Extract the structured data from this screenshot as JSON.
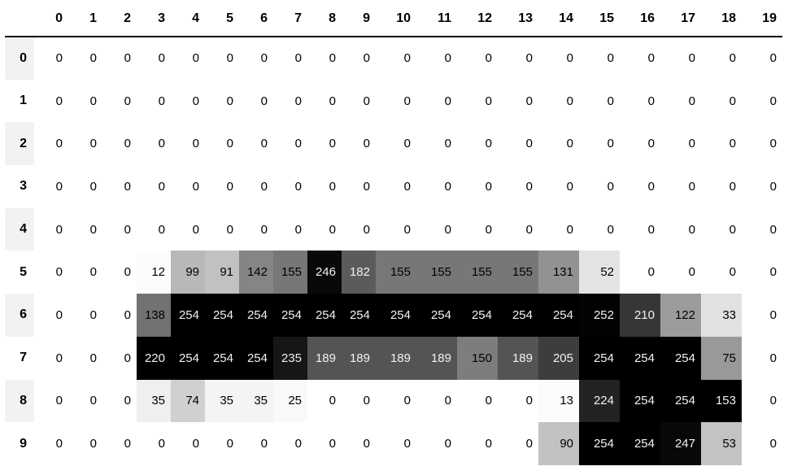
{
  "chart_data": {
    "type": "heatmap",
    "title": "",
    "x_labels": [
      "0",
      "1",
      "2",
      "3",
      "4",
      "5",
      "6",
      "7",
      "8",
      "9",
      "10",
      "11",
      "12",
      "13",
      "14",
      "15",
      "16",
      "17",
      "18",
      "19"
    ],
    "y_labels": [
      "0",
      "1",
      "2",
      "3",
      "4",
      "5",
      "6",
      "7",
      "8",
      "9"
    ],
    "matrix": [
      [
        0,
        0,
        0,
        0,
        0,
        0,
        0,
        0,
        0,
        0,
        0,
        0,
        0,
        0,
        0,
        0,
        0,
        0,
        0,
        0
      ],
      [
        0,
        0,
        0,
        0,
        0,
        0,
        0,
        0,
        0,
        0,
        0,
        0,
        0,
        0,
        0,
        0,
        0,
        0,
        0,
        0
      ],
      [
        0,
        0,
        0,
        0,
        0,
        0,
        0,
        0,
        0,
        0,
        0,
        0,
        0,
        0,
        0,
        0,
        0,
        0,
        0,
        0
      ],
      [
        0,
        0,
        0,
        0,
        0,
        0,
        0,
        0,
        0,
        0,
        0,
        0,
        0,
        0,
        0,
        0,
        0,
        0,
        0,
        0
      ],
      [
        0,
        0,
        0,
        0,
        0,
        0,
        0,
        0,
        0,
        0,
        0,
        0,
        0,
        0,
        0,
        0,
        0,
        0,
        0,
        0
      ],
      [
        0,
        0,
        0,
        12,
        99,
        91,
        142,
        155,
        246,
        182,
        155,
        155,
        155,
        155,
        131,
        52,
        0,
        0,
        0,
        0
      ],
      [
        0,
        0,
        0,
        138,
        254,
        254,
        254,
        254,
        254,
        254,
        254,
        254,
        254,
        254,
        254,
        252,
        210,
        122,
        33,
        0
      ],
      [
        0,
        0,
        0,
        220,
        254,
        254,
        254,
        235,
        189,
        189,
        189,
        189,
        150,
        189,
        205,
        254,
        254,
        254,
        75,
        0
      ],
      [
        0,
        0,
        0,
        35,
        74,
        35,
        35,
        25,
        0,
        0,
        0,
        0,
        0,
        0,
        13,
        224,
        254,
        254,
        153,
        0
      ],
      [
        0,
        0,
        0,
        0,
        0,
        0,
        0,
        0,
        0,
        0,
        0,
        0,
        0,
        0,
        90,
        254,
        254,
        247,
        53,
        0
      ]
    ],
    "value_range": [
      0,
      254
    ],
    "normalization": "per-column",
    "colormap": "greys-white-to-black",
    "legend": "none",
    "grid": "off"
  },
  "style": {
    "header_border_color": "#000000",
    "index_stripe_color": "#f2f2f2",
    "header_text_color": "#000000",
    "cell_text_dark": "#000000",
    "cell_text_light": "#f1f1f1",
    "background_color": "#ffffff",
    "light_text_threshold": 0.65
  }
}
